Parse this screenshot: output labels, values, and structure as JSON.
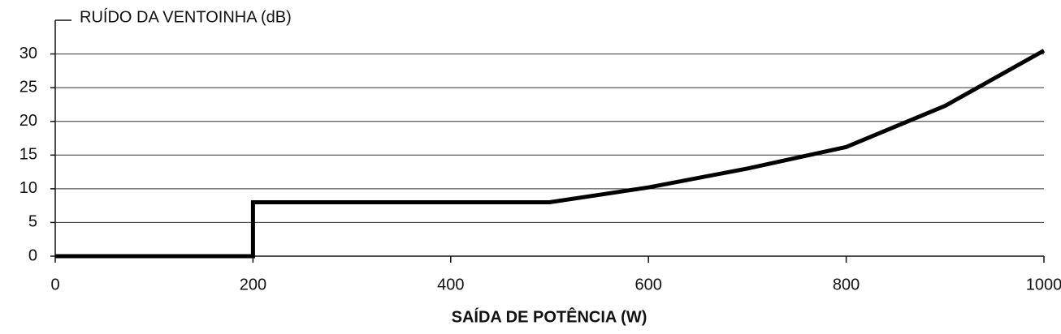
{
  "chart_data": {
    "type": "line",
    "title": "RUÍDO DA VENTOINHA (dB)",
    "x_label": "SAÍDA DE POTÊNCIA (W)",
    "x": [
      0,
      200,
      200,
      500,
      600,
      700,
      800,
      900,
      1000
    ],
    "values": [
      0,
      0,
      8,
      8,
      10.2,
      13,
      16.2,
      22.3,
      30.5
    ],
    "color": "#000000",
    "xlim": [
      0,
      1000
    ],
    "xticks": [
      0,
      200,
      400,
      600,
      800,
      1000
    ],
    "ylim": [
      0,
      35
    ],
    "yticks": [
      0,
      5,
      10,
      15,
      20,
      25,
      30
    ],
    "grid": true
  }
}
